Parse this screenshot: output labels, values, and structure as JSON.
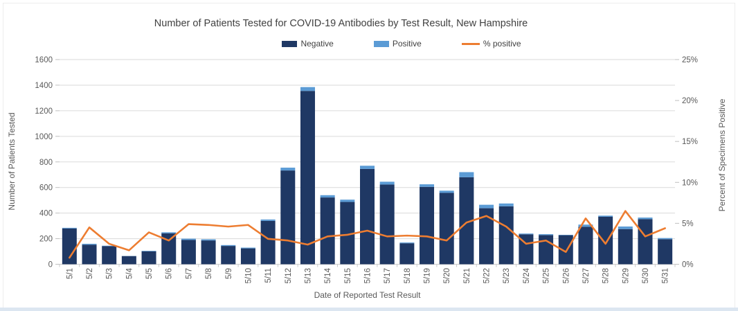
{
  "chart_data": {
    "type": "bar",
    "stacked": true,
    "title": "Number of Patients Tested for COVID-19 Antibodies by Test Result, New Hampshire",
    "xlabel": "Date of Reported Test Result",
    "grid": "horizontal",
    "legend_position": "top",
    "categories": [
      "5/1",
      "5/2",
      "5/3",
      "5/4",
      "5/5",
      "5/6",
      "5/7",
      "5/8",
      "5/9",
      "5/10",
      "5/11",
      "5/12",
      "5/13",
      "5/14",
      "5/15",
      "5/16",
      "5/17",
      "5/18",
      "5/19",
      "5/20",
      "5/21",
      "5/22",
      "5/23",
      "5/24",
      "5/25",
      "5/26",
      "5/27",
      "5/28",
      "5/29",
      "5/30",
      "5/31"
    ],
    "series": [
      {
        "name": "Negative",
        "chart_type": "bar",
        "axis": "left",
        "color": "#1f3864",
        "values": [
          280,
          153,
          141,
          64,
          101,
          242,
          190,
          186,
          143,
          124,
          339,
          733,
          1355,
          522,
          487,
          745,
          623,
          164,
          605,
          558,
          680,
          438,
          453,
          234,
          228,
          227,
          293,
          371,
          275,
          353,
          196
        ]
      },
      {
        "name": "Positive",
        "chart_type": "bar",
        "axis": "left",
        "color": "#5b9bd5",
        "values": [
          5,
          7,
          4,
          1,
          4,
          8,
          10,
          9,
          7,
          6,
          11,
          22,
          30,
          18,
          18,
          25,
          22,
          6,
          20,
          17,
          40,
          27,
          22,
          6,
          7,
          3,
          17,
          9,
          20,
          12,
          9
        ]
      },
      {
        "name": "% positive",
        "chart_type": "line",
        "axis": "right",
        "color": "#ed7d31",
        "values": [
          0.8,
          4.5,
          2.5,
          1.7,
          3.9,
          2.9,
          4.9,
          4.8,
          4.6,
          4.8,
          3.1,
          2.9,
          2.4,
          3.4,
          3.6,
          4.1,
          3.4,
          3.5,
          3.4,
          2.9,
          5.1,
          5.9,
          4.6,
          2.5,
          2.9,
          1.5,
          5.6,
          2.5,
          6.5,
          3.4,
          4.4
        ]
      }
    ],
    "left_axis": {
      "label": "Number of Patients Tested",
      "min": 0,
      "max": 1600,
      "step": 200
    },
    "right_axis": {
      "label": "Percent of Specimens Positive",
      "min": 0,
      "max": 25,
      "step": 5,
      "suffix": "%"
    }
  }
}
